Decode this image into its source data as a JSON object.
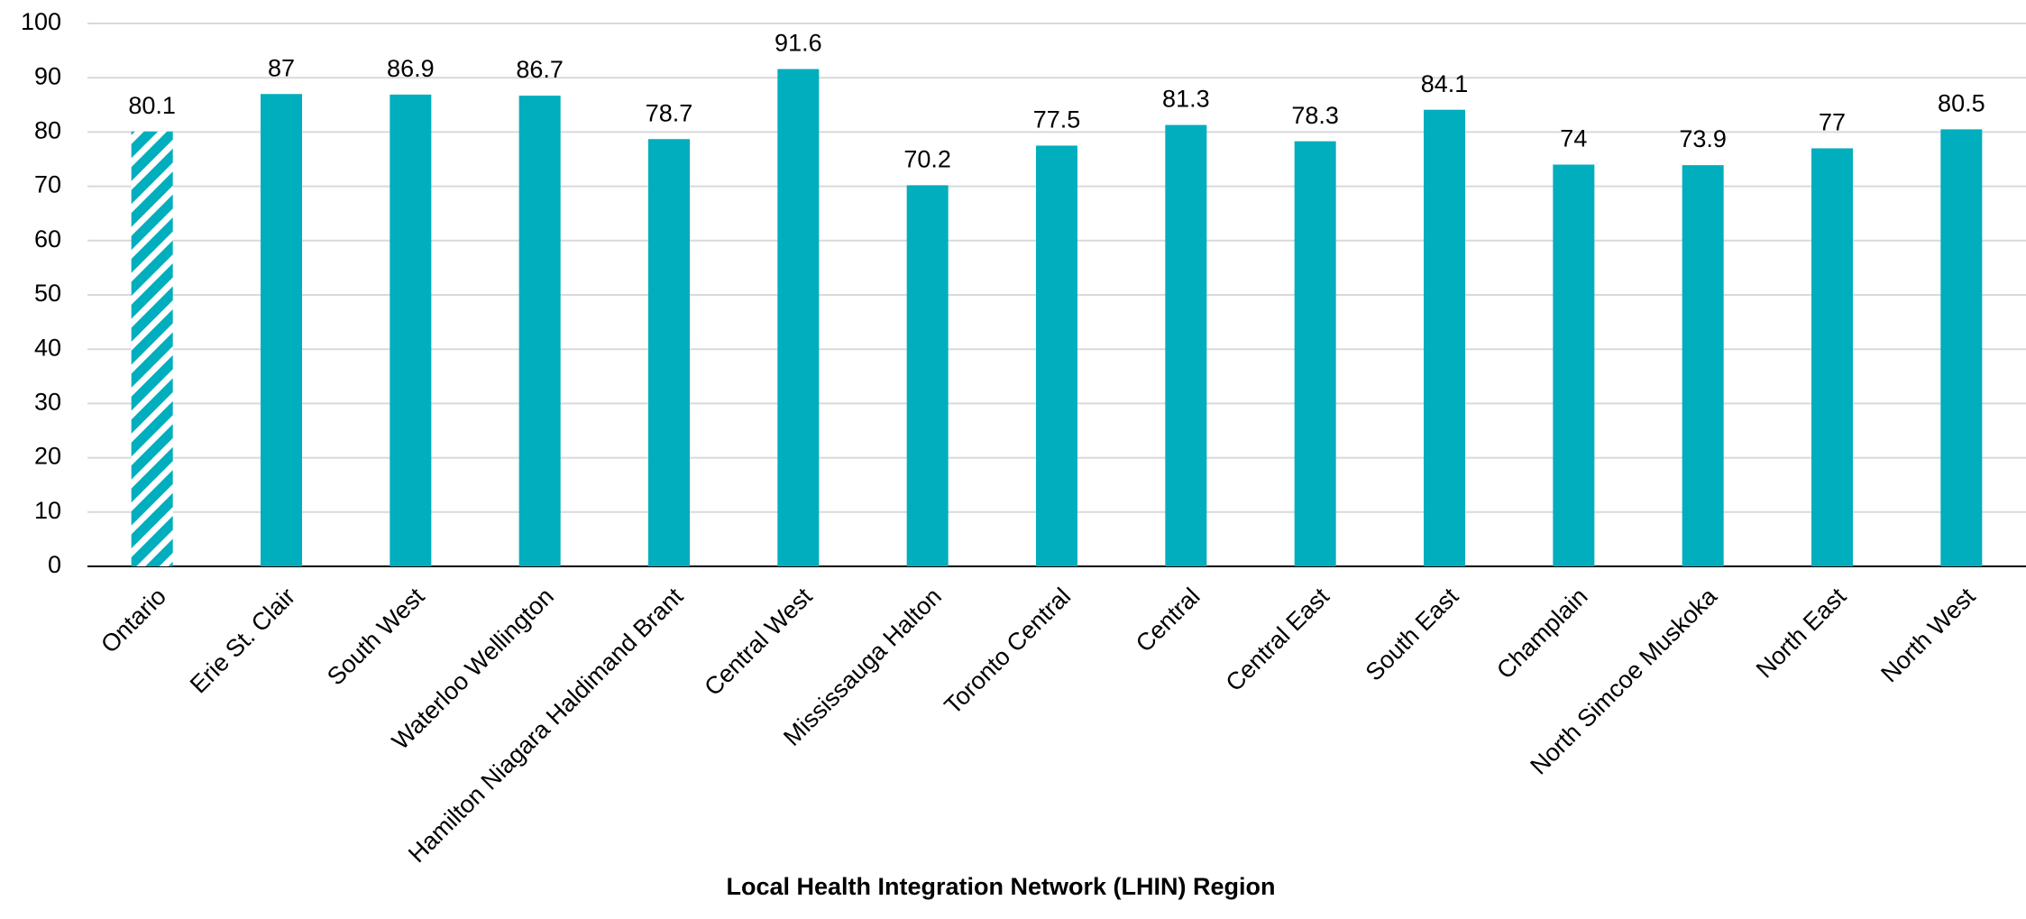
{
  "chart_data": {
    "type": "bar",
    "x_label": "Local Health Integration Network (LHIN) Region",
    "categories": [
      "Ontario",
      "Erie St. Clair",
      "South West",
      "Waterloo Wellington",
      "Hamilton Niagara Haldimand Brant",
      "Central West",
      "Mississauga Halton",
      "Toronto Central",
      "Central",
      "Central East",
      "South East",
      "Champlain",
      "North Simcoe Muskoka",
      "North East",
      "North West"
    ],
    "values": [
      80.1,
      87,
      86.9,
      86.7,
      78.7,
      91.6,
      70.2,
      77.5,
      81.3,
      78.3,
      84.1,
      74,
      73.9,
      77,
      80.5
    ],
    "color": "#00aebd",
    "hatched_indices": [
      0
    ],
    "ylim": [
      0,
      100
    ],
    "yticks": [
      0,
      10,
      20,
      30,
      40,
      50,
      60,
      70,
      80,
      90,
      100
    ],
    "grid": true
  }
}
